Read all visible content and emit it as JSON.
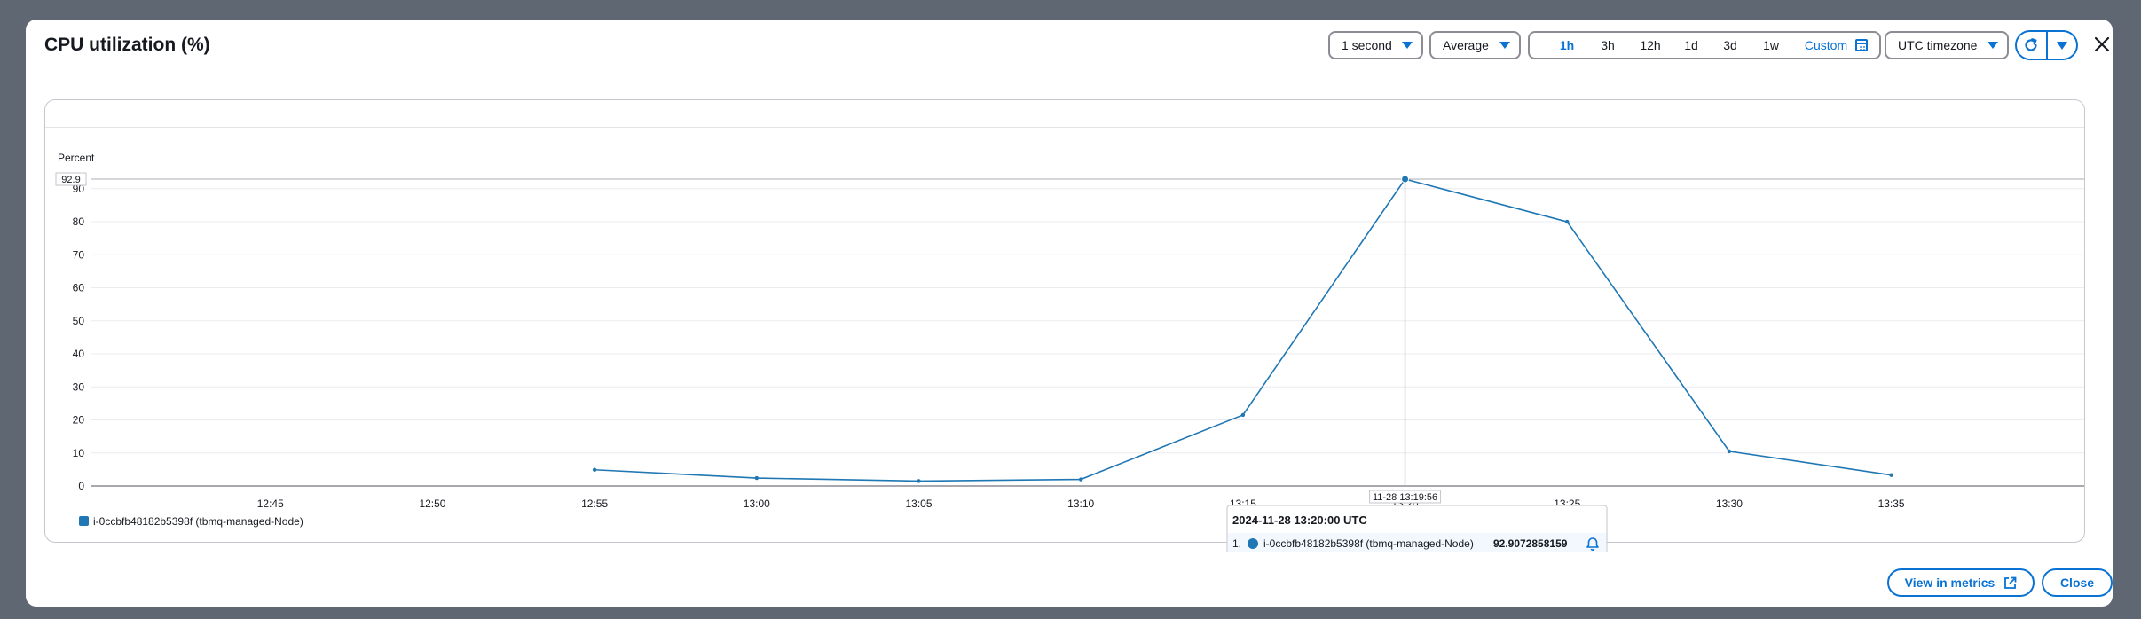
{
  "modal": {
    "title": "CPU utilization (%)"
  },
  "controls": {
    "period": "1 second",
    "statistic": "Average",
    "ranges": [
      "1h",
      "3h",
      "12h",
      "1d",
      "3d",
      "1w",
      "Custom"
    ],
    "active_range": "1h",
    "timezone": "UTC timezone"
  },
  "icons": {
    "refresh": "refresh-icon",
    "dropdown": "chevron-down-icon",
    "close": "close-icon",
    "calendar": "calendar-icon",
    "external": "external-link-icon",
    "alarm": "bell-icon"
  },
  "colors": {
    "series": "#1f77b4",
    "accent": "#0972d3"
  },
  "footer": {
    "view_metrics": "View in metrics",
    "close": "Close"
  },
  "chart_data": {
    "type": "line",
    "ylabel": "Percent",
    "ylim": [
      0,
      92.9
    ],
    "y_ticks": [
      0,
      10,
      20,
      30,
      40,
      50,
      60,
      70,
      80,
      90
    ],
    "y_max_label": "92.9",
    "x_tick_labels": [
      "12:45",
      "12:50",
      "12:55",
      "13:00",
      "13:05",
      "13:10",
      "13:15",
      "13:20",
      "13:25",
      "13:30",
      "13:35"
    ],
    "x_tick_minutes": [
      0,
      5,
      10,
      15,
      20,
      25,
      30,
      35,
      40,
      45,
      50
    ],
    "x_range_minutes": [
      -5.55,
      55.95
    ],
    "series": [
      {
        "name": "i-0ccbfb48182b5398f (tbmq-managed-Node)",
        "x_minutes": [
          10,
          15,
          20,
          25,
          30,
          35,
          40,
          45,
          50
        ],
        "values": [
          4.9,
          2.4,
          1.5,
          2.0,
          21.5,
          92.9,
          80.0,
          10.5,
          3.3
        ]
      }
    ],
    "crosshair": {
      "x_minutes": 35,
      "label": "11-28 13:19:56"
    },
    "tooltip": {
      "title": "2024-11-28 13:20:00 UTC",
      "index": "1.",
      "series_name": "i-0ccbfb48182b5398f (tbmq-managed-Node)",
      "value": "92.9072858159"
    },
    "legend": {
      "placement": "bottom-left",
      "entries": [
        "i-0ccbfb48182b5398f (tbmq-managed-Node)"
      ]
    },
    "grid": true
  }
}
